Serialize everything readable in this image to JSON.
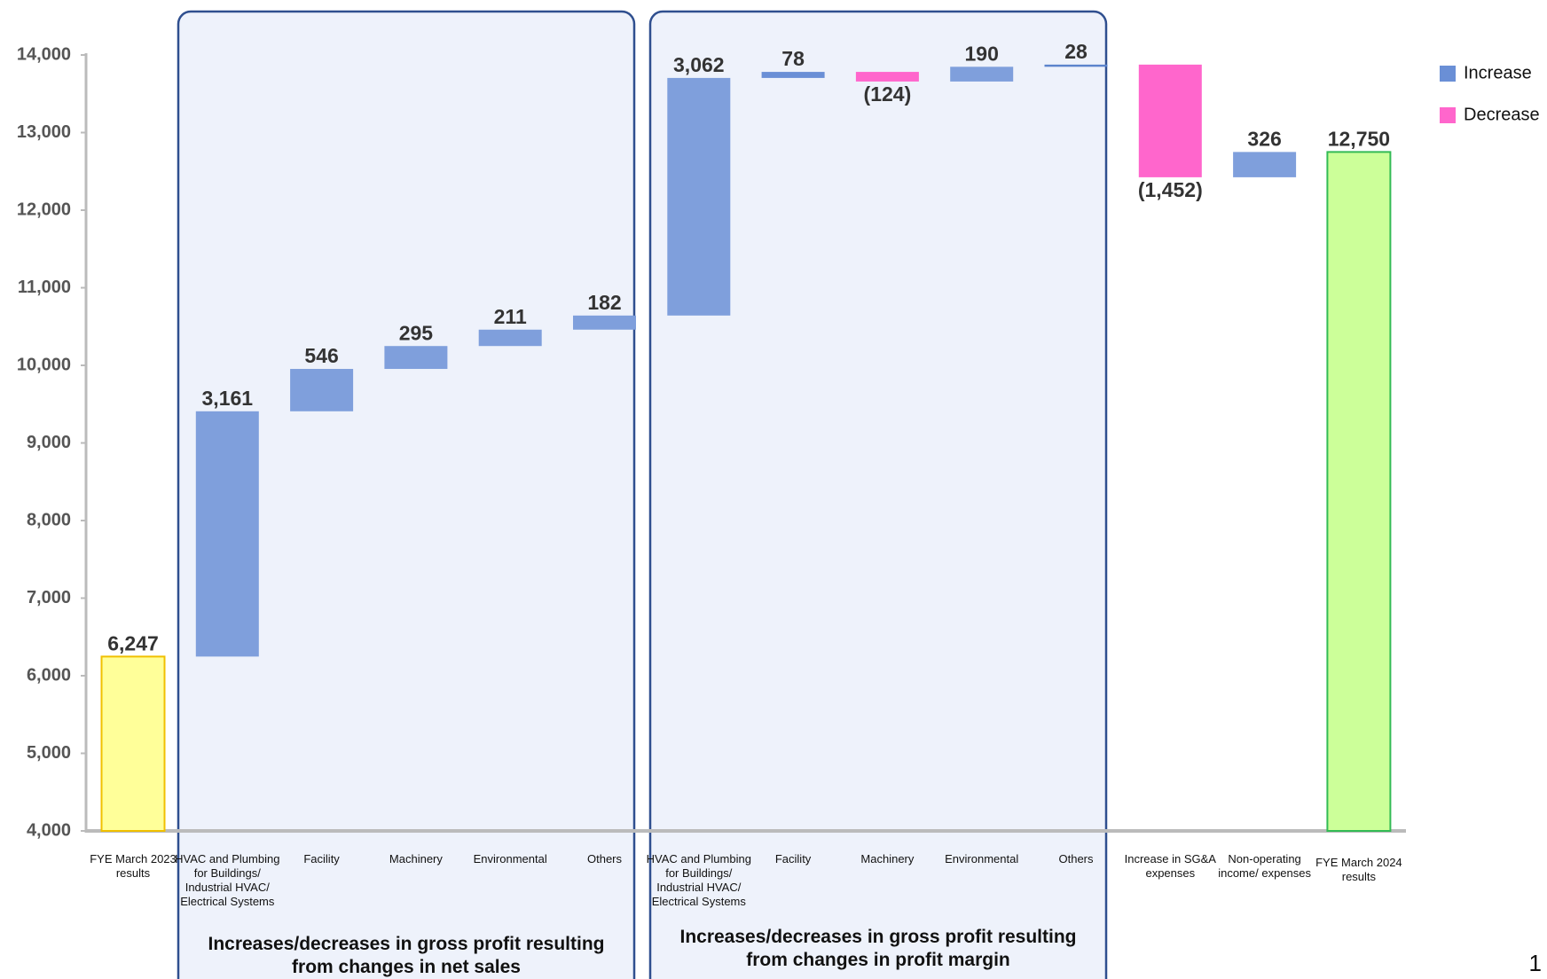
{
  "chart_data": {
    "type": "waterfall",
    "categories": [
      "FYE March 2023 results",
      "HVAC and Plumbing for Buildings/ Industrial HVAC/ Electrical Systems",
      "Facility",
      "Machinery",
      "Environmental",
      "Others",
      "HVAC and Plumbing for Buildings/ Industrial HVAC/ Electrical Systems",
      "Facility",
      "Machinery",
      "Environmental",
      "Others",
      "Increase in SG&A expenses",
      "Non-operating income/ expenses",
      "FYE March 2024 results"
    ],
    "values": [
      6247,
      3161,
      546,
      295,
      211,
      182,
      3062,
      78,
      -124,
      190,
      28,
      -1452,
      326,
      12750
    ],
    "value_labels": [
      "6,247",
      "3,161",
      "546",
      "295",
      "211",
      "182",
      "3,062",
      "78",
      "(124)",
      "190",
      "28",
      "(1,452)",
      "326",
      "12,750"
    ],
    "colors": [
      "#ffff99",
      "#7f9fdc",
      "#7f9fdc",
      "#7f9fdc",
      "#7f9fdc",
      "#7f9fdc",
      "#7f9fdc",
      "#6a8fd6",
      "#ff66cc",
      "#7f9fdc",
      "#5b84cc",
      "#ff66cc",
      "#7f9fdc",
      "#ccff99"
    ],
    "ylim": [
      4000,
      14000
    ],
    "yticks": [
      {
        "value": 4000,
        "label": "4,000"
      },
      {
        "value": 5000,
        "label": "5,000"
      },
      {
        "value": 6000,
        "label": "6,000"
      },
      {
        "value": 7000,
        "label": "7,000"
      },
      {
        "value": 8000,
        "label": "8,000"
      },
      {
        "value": 9000,
        "label": "9,000"
      },
      {
        "value": 10000,
        "label": "10,000"
      },
      {
        "value": 11000,
        "label": "11,000"
      },
      {
        "value": 12000,
        "label": "12,000"
      },
      {
        "value": 13000,
        "label": "13,000"
      },
      {
        "value": 14000,
        "label": "14,000"
      }
    ],
    "legend": [
      {
        "name": "Increase",
        "color": "#6a8fd6"
      },
      {
        "name": "Decrease",
        "color": "#ff66cc"
      }
    ],
    "groups": [
      {
        "label": "Increases/decreases in gross profit resulting from changes in net sales"
      },
      {
        "label": "Increases/decreases in gross profit resulting from changes in profit margin"
      }
    ]
  },
  "page_number": "1"
}
